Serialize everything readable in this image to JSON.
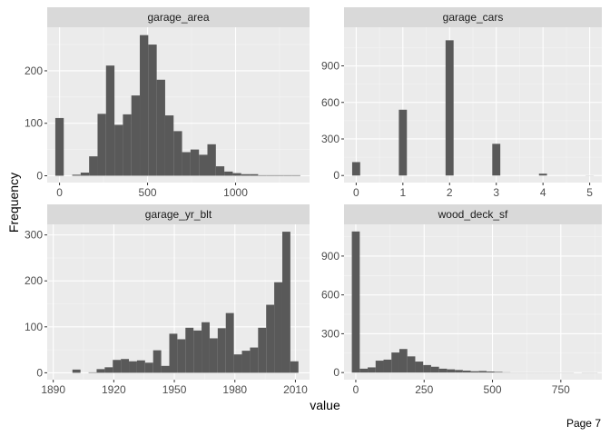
{
  "page": {
    "label": "Page 7"
  },
  "axes": {
    "xlabel": "value",
    "ylabel": "Frequency"
  },
  "colors": {
    "panel_bg": "#ebebeb",
    "strip_bg": "#d9d9d9",
    "bar": "#595959",
    "grid_major": "#ffffff",
    "grid_minor": "#f5f5f5",
    "tick_text": "#4d4d4d"
  },
  "chart_data": [
    {
      "type": "bar",
      "facet": "garage_area",
      "xlim": [
        -70,
        1420
      ],
      "ylim": [
        -13,
        283
      ],
      "xticks": [
        0,
        500,
        1000
      ],
      "yticks": [
        0,
        100,
        200
      ],
      "bins": [
        {
          "x0": -24,
          "x1": 24,
          "count": 110
        },
        {
          "x0": 24,
          "x1": 72,
          "count": 0
        },
        {
          "x0": 72,
          "x1": 120,
          "count": 2
        },
        {
          "x0": 120,
          "x1": 168,
          "count": 6
        },
        {
          "x0": 168,
          "x1": 216,
          "count": 37
        },
        {
          "x0": 216,
          "x1": 264,
          "count": 118
        },
        {
          "x0": 264,
          "x1": 312,
          "count": 210
        },
        {
          "x0": 312,
          "x1": 360,
          "count": 97
        },
        {
          "x0": 360,
          "x1": 408,
          "count": 117
        },
        {
          "x0": 408,
          "x1": 456,
          "count": 153
        },
        {
          "x0": 456,
          "x1": 504,
          "count": 268
        },
        {
          "x0": 504,
          "x1": 552,
          "count": 250
        },
        {
          "x0": 552,
          "x1": 600,
          "count": 183
        },
        {
          "x0": 600,
          "x1": 648,
          "count": 115
        },
        {
          "x0": 648,
          "x1": 696,
          "count": 85
        },
        {
          "x0": 696,
          "x1": 744,
          "count": 45
        },
        {
          "x0": 744,
          "x1": 792,
          "count": 50
        },
        {
          "x0": 792,
          "x1": 840,
          "count": 40
        },
        {
          "x0": 840,
          "x1": 888,
          "count": 60
        },
        {
          "x0": 888,
          "x1": 936,
          "count": 18
        },
        {
          "x0": 936,
          "x1": 984,
          "count": 8
        },
        {
          "x0": 984,
          "x1": 1032,
          "count": 5
        },
        {
          "x0": 1032,
          "x1": 1080,
          "count": 3
        },
        {
          "x0": 1080,
          "x1": 1128,
          "count": 3
        },
        {
          "x0": 1128,
          "x1": 1176,
          "count": 1
        },
        {
          "x0": 1176,
          "x1": 1224,
          "count": 1
        },
        {
          "x0": 1224,
          "x1": 1272,
          "count": 1
        },
        {
          "x0": 1272,
          "x1": 1320,
          "count": 1
        },
        {
          "x0": 1320,
          "x1": 1368,
          "count": 1
        }
      ]
    },
    {
      "type": "bar",
      "facet": "garage_cars",
      "xlim": [
        -0.26,
        5.26
      ],
      "ylim": [
        -58,
        1217
      ],
      "xticks": [
        0,
        1,
        2,
        3,
        4,
        5
      ],
      "yticks": [
        0,
        300,
        600,
        900
      ],
      "bins": [
        {
          "x0": -0.086,
          "x1": 0.086,
          "count": 110
        },
        {
          "x0": 0.914,
          "x1": 1.086,
          "count": 540
        },
        {
          "x0": 1.914,
          "x1": 2.086,
          "count": 1110
        },
        {
          "x0": 2.914,
          "x1": 3.086,
          "count": 260
        },
        {
          "x0": 3.914,
          "x1": 4.086,
          "count": 15
        },
        {
          "x0": 4.914,
          "x1": 5.086,
          "count": 1
        }
      ]
    },
    {
      "type": "bar",
      "facet": "garage_yr_blt",
      "xlim": [
        1887,
        2017
      ],
      "ylim": [
        -15,
        323
      ],
      "xticks": [
        1890,
        1920,
        1950,
        1980,
        2010
      ],
      "yticks": [
        0,
        100,
        200,
        300
      ],
      "bins": [
        {
          "x0": 1895.5,
          "x1": 1899.5,
          "count": 0
        },
        {
          "x0": 1899.5,
          "x1": 1903.5,
          "count": 7
        },
        {
          "x0": 1903.5,
          "x1": 1907.5,
          "count": 0
        },
        {
          "x0": 1907.5,
          "x1": 1911.5,
          "count": 1
        },
        {
          "x0": 1911.5,
          "x1": 1915.5,
          "count": 8
        },
        {
          "x0": 1915.5,
          "x1": 1919.5,
          "count": 12
        },
        {
          "x0": 1919.5,
          "x1": 1923.5,
          "count": 28
        },
        {
          "x0": 1923.5,
          "x1": 1927.5,
          "count": 30
        },
        {
          "x0": 1927.5,
          "x1": 1931.5,
          "count": 25
        },
        {
          "x0": 1931.5,
          "x1": 1935.5,
          "count": 27
        },
        {
          "x0": 1935.5,
          "x1": 1939.5,
          "count": 22
        },
        {
          "x0": 1939.5,
          "x1": 1943.5,
          "count": 49
        },
        {
          "x0": 1943.5,
          "x1": 1947.5,
          "count": 15
        },
        {
          "x0": 1947.5,
          "x1": 1951.5,
          "count": 85
        },
        {
          "x0": 1951.5,
          "x1": 1955.5,
          "count": 73
        },
        {
          "x0": 1955.5,
          "x1": 1959.5,
          "count": 98
        },
        {
          "x0": 1959.5,
          "x1": 1963.5,
          "count": 92
        },
        {
          "x0": 1963.5,
          "x1": 1967.5,
          "count": 110
        },
        {
          "x0": 1967.5,
          "x1": 1971.5,
          "count": 75
        },
        {
          "x0": 1971.5,
          "x1": 1975.5,
          "count": 97
        },
        {
          "x0": 1975.5,
          "x1": 1979.5,
          "count": 130
        },
        {
          "x0": 1979.5,
          "x1": 1983.5,
          "count": 40
        },
        {
          "x0": 1983.5,
          "x1": 1987.5,
          "count": 48
        },
        {
          "x0": 1987.5,
          "x1": 1991.5,
          "count": 55
        },
        {
          "x0": 1991.5,
          "x1": 1995.5,
          "count": 98
        },
        {
          "x0": 1995.5,
          "x1": 1999.5,
          "count": 148
        },
        {
          "x0": 1999.5,
          "x1": 2003.5,
          "count": 197
        },
        {
          "x0": 2003.5,
          "x1": 2007.5,
          "count": 307
        },
        {
          "x0": 2007.5,
          "x1": 2011.5,
          "count": 25
        }
      ]
    },
    {
      "type": "bar",
      "facet": "wood_deck_sf",
      "xlim": [
        -43,
        900
      ],
      "ylim": [
        -55,
        1145
      ],
      "xticks": [
        0,
        250,
        500,
        750
      ],
      "yticks": [
        0,
        300,
        600,
        900
      ],
      "bins": [
        {
          "x0": -14.5,
          "x1": 14.5,
          "count": 1090
        },
        {
          "x0": 14.5,
          "x1": 43.5,
          "count": 30
        },
        {
          "x0": 43.5,
          "x1": 72.5,
          "count": 40
        },
        {
          "x0": 72.5,
          "x1": 101.5,
          "count": 92
        },
        {
          "x0": 101.5,
          "x1": 130.5,
          "count": 100
        },
        {
          "x0": 130.5,
          "x1": 159.5,
          "count": 155
        },
        {
          "x0": 159.5,
          "x1": 188.5,
          "count": 182
        },
        {
          "x0": 188.5,
          "x1": 217.5,
          "count": 125
        },
        {
          "x0": 217.5,
          "x1": 246.5,
          "count": 85
        },
        {
          "x0": 246.5,
          "x1": 275.5,
          "count": 58
        },
        {
          "x0": 275.5,
          "x1": 304.5,
          "count": 45
        },
        {
          "x0": 304.5,
          "x1": 333.5,
          "count": 30
        },
        {
          "x0": 333.5,
          "x1": 362.5,
          "count": 25
        },
        {
          "x0": 362.5,
          "x1": 391.5,
          "count": 20
        },
        {
          "x0": 391.5,
          "x1": 420.5,
          "count": 15
        },
        {
          "x0": 420.5,
          "x1": 449.5,
          "count": 10
        },
        {
          "x0": 449.5,
          "x1": 478.5,
          "count": 12
        },
        {
          "x0": 478.5,
          "x1": 507.5,
          "count": 8
        },
        {
          "x0": 507.5,
          "x1": 536.5,
          "count": 5
        },
        {
          "x0": 536.5,
          "x1": 565.5,
          "count": 2
        },
        {
          "x0": 565.5,
          "x1": 594.5,
          "count": 1
        },
        {
          "x0": 594.5,
          "x1": 623.5,
          "count": 1
        },
        {
          "x0": 623.5,
          "x1": 652.5,
          "count": 1
        },
        {
          "x0": 652.5,
          "x1": 681.5,
          "count": 1
        },
        {
          "x0": 681.5,
          "x1": 710.5,
          "count": 1
        },
        {
          "x0": 710.5,
          "x1": 739.5,
          "count": 1
        },
        {
          "x0": 739.5,
          "x1": 768.5,
          "count": 1
        },
        {
          "x0": 768.5,
          "x1": 797.5,
          "count": 1
        },
        {
          "x0": 826.5,
          "x1": 855.5,
          "count": 1
        },
        {
          "x0": 855.5,
          "x1": 884.5,
          "count": 1
        }
      ]
    }
  ]
}
